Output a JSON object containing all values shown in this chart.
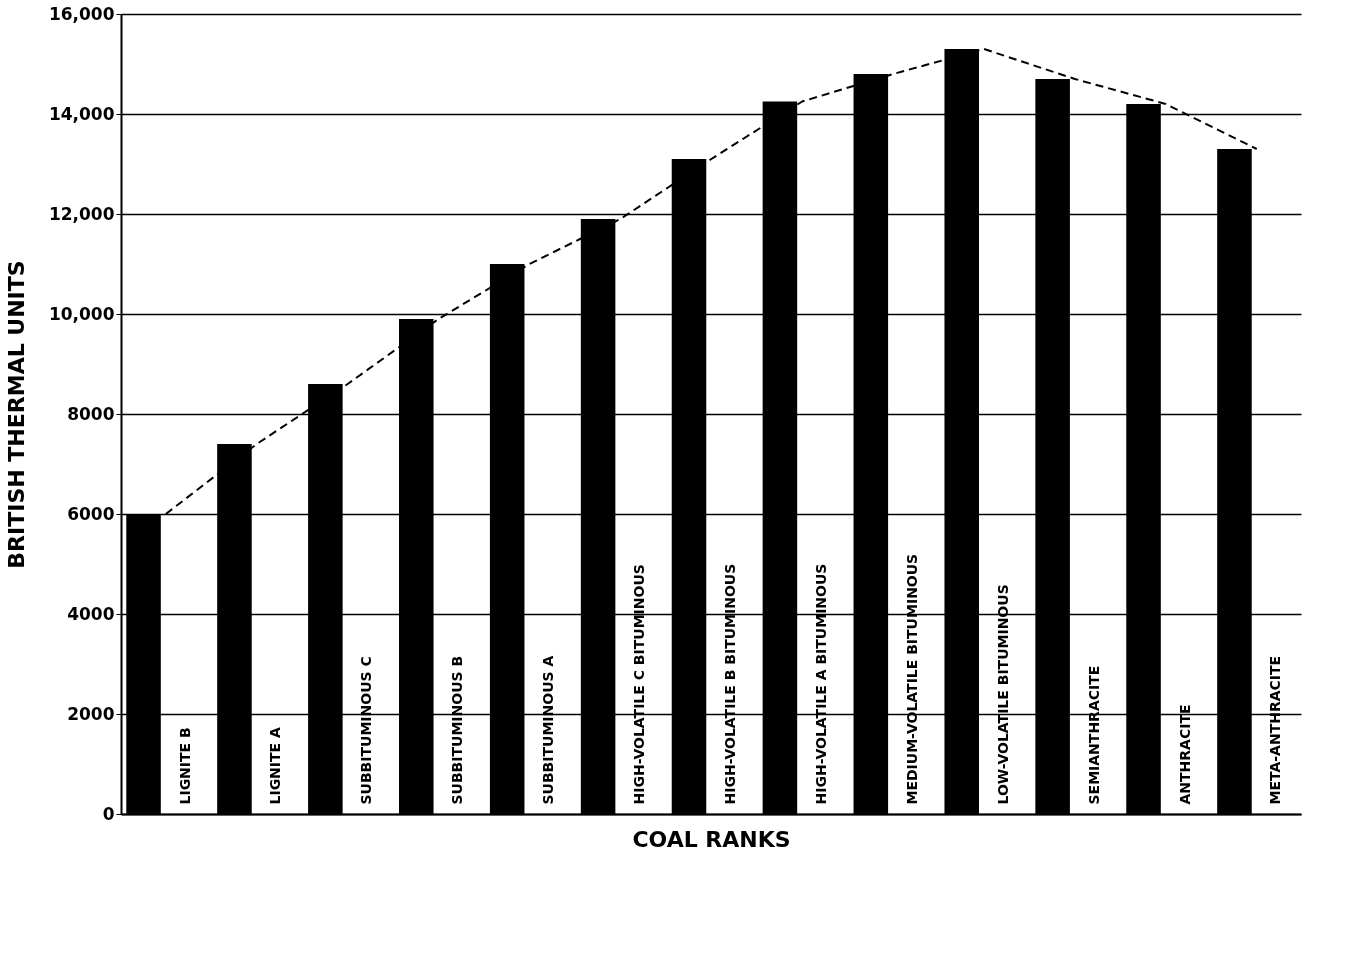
{
  "chart_data": {
    "type": "bar",
    "xlabel": "COAL RANKS",
    "ylabel": "BRITISH THERMAL UNITS",
    "categories": [
      "LIGNITE B",
      "LIGNITE A",
      "SUBBITUMINOUS C",
      "SUBBITUMINOUS B",
      "SUBBITUMINOUS A",
      "HIGH-VOLATILE C BITUMINOUS",
      "HIGH-VOLATILE B BITUMINOUS",
      "HIGH-VOLATILE A BITUMINOUS",
      "MEDIUM-VOLATILE BITUMINOUS",
      "LOW-VOLATILE BITUMINOUS",
      "SEMIANTHRACITE",
      "ANTHRACITE",
      "META-ANTHRACITE"
    ],
    "series": [
      {
        "type": "bar",
        "color": "#000000",
        "values": [
          6000,
          7400,
          8600,
          9900,
          11000,
          11900,
          13100,
          14250,
          14800,
          15300,
          14700,
          14200,
          13300
        ]
      },
      {
        "type": "line",
        "color": "#000000",
        "line_style": "dashed",
        "marker": "none",
        "values": [
          6000,
          7400,
          8600,
          9900,
          11000,
          11900,
          13100,
          14250,
          14800,
          15300,
          14700,
          14200,
          13300
        ]
      }
    ],
    "ylim": [
      0,
      16000
    ],
    "yticks": [
      0,
      2000,
      4000,
      6000,
      8000,
      {
        "value": 10000,
        "label": "10,000"
      },
      {
        "value": 12000,
        "label": "12,000"
      },
      {
        "value": 14000,
        "label": "14,000"
      },
      {
        "value": 16000,
        "label": "16,000"
      }
    ],
    "grid": "y"
  }
}
